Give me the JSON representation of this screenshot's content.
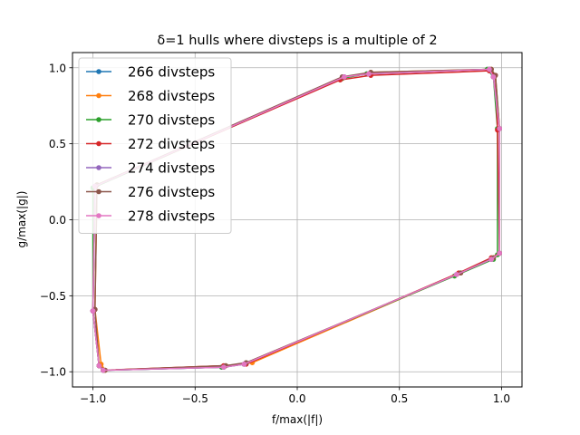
{
  "chart_data": {
    "type": "line",
    "title": "δ=1 hulls where divsteps is a multiple of 2",
    "xlabel": "f/max(|f|)",
    "ylabel": "g/max(|g|)",
    "xlim": [
      -1.1,
      1.1
    ],
    "ylim": [
      -1.1,
      1.1
    ],
    "xticks": [
      -1.0,
      -0.5,
      0.0,
      0.5,
      1.0
    ],
    "yticks": [
      -1.0,
      -0.5,
      0.0,
      0.5,
      1.0
    ],
    "xtick_labels": [
      "−1.0",
      "−0.5",
      "0.0",
      "0.5",
      "1.0"
    ],
    "ytick_labels": [
      "−1.0",
      "−0.5",
      "0.0",
      "0.5",
      "1.0"
    ],
    "grid": true,
    "legend_position": "top-left",
    "series": [
      {
        "name": "266 divsteps",
        "color": "#1f77b4",
        "x": [
          -1.0,
          -0.97,
          -0.95,
          -0.36,
          -0.26,
          0.78,
          0.95,
          0.99,
          0.99,
          0.96,
          0.94,
          0.35,
          0.23,
          -0.99,
          -1.0
        ],
        "y": [
          -0.6,
          -0.96,
          -0.99,
          -0.97,
          -0.95,
          -0.36,
          -0.26,
          -0.22,
          0.6,
          0.94,
          0.99,
          0.96,
          0.94,
          0.22,
          -0.6
        ]
      },
      {
        "name": "268 divsteps",
        "color": "#ff7f0e",
        "x": [
          -0.99,
          -0.96,
          -0.94,
          -0.35,
          -0.22,
          0.8,
          0.96,
          0.99,
          0.99,
          0.97,
          0.95,
          0.36,
          0.22,
          -0.98,
          -0.99
        ],
        "y": [
          -0.59,
          -0.95,
          -0.99,
          -0.96,
          -0.94,
          -0.35,
          -0.25,
          -0.22,
          0.6,
          0.95,
          0.99,
          0.97,
          0.93,
          0.23,
          -0.59
        ]
      },
      {
        "name": "270 divsteps",
        "color": "#2ca02c",
        "x": [
          -1.0,
          -0.97,
          -0.95,
          -0.37,
          -0.26,
          0.77,
          0.96,
          0.98,
          0.98,
          0.96,
          0.93,
          0.34,
          0.22,
          -1.0,
          -1.0
        ],
        "y": [
          -0.6,
          -0.96,
          -0.99,
          -0.97,
          -0.95,
          -0.37,
          -0.26,
          -0.23,
          0.6,
          0.94,
          0.99,
          0.96,
          0.93,
          0.21,
          -0.6
        ]
      },
      {
        "name": "272 divsteps",
        "color": "#d62728",
        "x": [
          -1.0,
          -0.97,
          -0.95,
          -0.36,
          -0.25,
          0.79,
          0.95,
          0.99,
          0.98,
          0.97,
          0.94,
          0.36,
          0.21,
          -0.99,
          -1.0
        ],
        "y": [
          -0.6,
          -0.96,
          -0.99,
          -0.96,
          -0.95,
          -0.35,
          -0.25,
          -0.22,
          0.59,
          0.95,
          0.98,
          0.95,
          0.92,
          0.22,
          -0.6
        ]
      },
      {
        "name": "274 divsteps",
        "color": "#9467bd",
        "x": [
          -1.0,
          -0.97,
          -0.95,
          -0.36,
          -0.26,
          0.78,
          0.95,
          0.99,
          0.99,
          0.96,
          0.94,
          0.35,
          0.23,
          -0.99,
          -1.0
        ],
        "y": [
          -0.6,
          -0.96,
          -0.99,
          -0.97,
          -0.95,
          -0.36,
          -0.26,
          -0.22,
          0.6,
          0.94,
          0.99,
          0.96,
          0.94,
          0.22,
          -0.6
        ]
      },
      {
        "name": "276 divsteps",
        "color": "#8c564b",
        "x": [
          -0.99,
          -0.97,
          -0.94,
          -0.35,
          -0.25,
          0.8,
          0.96,
          0.99,
          0.99,
          0.97,
          0.95,
          0.36,
          0.22,
          -0.98,
          -0.99
        ],
        "y": [
          -0.59,
          -0.96,
          -0.99,
          -0.96,
          -0.94,
          -0.35,
          -0.25,
          -0.22,
          0.6,
          0.95,
          0.99,
          0.97,
          0.94,
          0.23,
          -0.59
        ]
      },
      {
        "name": "278 divsteps",
        "color": "#e377c2",
        "x": [
          -1.0,
          -0.97,
          -0.95,
          -0.36,
          -0.26,
          0.78,
          0.95,
          0.99,
          0.99,
          0.96,
          0.94,
          0.35,
          0.23,
          -0.99,
          -1.0
        ],
        "y": [
          -0.6,
          -0.96,
          -0.99,
          -0.97,
          -0.95,
          -0.36,
          -0.26,
          -0.22,
          0.6,
          0.94,
          0.99,
          0.96,
          0.94,
          0.22,
          -0.6
        ]
      }
    ]
  }
}
